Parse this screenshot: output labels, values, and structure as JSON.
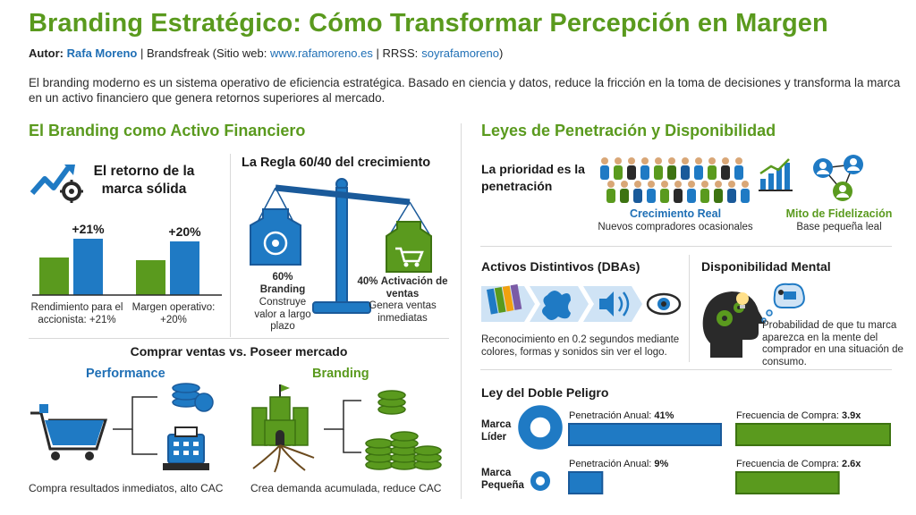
{
  "header": {
    "title": "Branding Estratégico: Cómo Transformar Percepción en Margen",
    "author_label": "Autor:",
    "author_name": "Rafa Moreno",
    "byline_rest_1": "| Brandsfreak (Sitio web:",
    "website": "www.rafamoreno.es",
    "byline_rest_2": "| RRSS:",
    "social": "soyrafamoreno",
    "byline_rest_3": ")"
  },
  "intro": "El branding moderno es un sistema operativo de eficiencia estratégica. Basado en ciencia y datos, reduce la fricción en la toma de decisiones y transforma la marca en un activo financiero que genera retornos superiores al mercado.",
  "left": {
    "heading": "El Branding como Activo Financiero",
    "retorno": {
      "title": "El retorno de la marca sólida",
      "groups": [
        {
          "value_label": "+21%",
          "caption": "Rendimiento para el accionista: +21%"
        },
        {
          "value_label": "+20%",
          "caption": "Margen operativo: +20%"
        }
      ]
    },
    "regla": {
      "title": "La Regla 60/40 del crecimiento",
      "left_pct": "60%",
      "left_name": "Branding",
      "left_desc": "Construye valor a largo plazo",
      "right_pct": "40%",
      "right_name": "Activación de ventas",
      "right_desc": "Genera ventas inmediatas"
    },
    "comprar": {
      "title": "Comprar ventas vs. Poseer mercado",
      "performance_label": "Performance",
      "performance_caption": "Compra resultados inmediatos, alto CAC",
      "branding_label": "Branding",
      "branding_caption": "Crea demanda acumulada, reduce CAC"
    }
  },
  "right": {
    "heading": "Leyes de Penetración y Disponibilidad",
    "penetracion": {
      "title": "La prioridad es la penetración",
      "growth_label": "Crecimiento Real",
      "growth_desc": "Nuevos compradores ocasionales",
      "myth_label": "Mito de Fidelización",
      "myth_desc": "Base pequeña leal"
    },
    "dbas": {
      "title": "Activos Distintivos (DBAs)",
      "desc": "Reconocimiento en 0.2 segundos mediante colores, formas y sonidos sin ver el logo."
    },
    "mental": {
      "title": "Disponibilidad Mental",
      "desc": "Probabilidad de que tu marca aparezca en la mente del comprador en una situación de consumo."
    },
    "doble": {
      "title": "Ley del Doble Peligro",
      "penetration_label": "Penetración Anual:",
      "frequency_label": "Frecuencia de Compra:",
      "rows": [
        {
          "name": "Marca Líder",
          "penetration": "41%",
          "frequency": "3.9x"
        },
        {
          "name": "Marca Pequeña",
          "penetration": "9%",
          "frequency": "2.6x"
        }
      ]
    }
  },
  "colors": {
    "green": "#5a9a1e",
    "blue": "#1f7ac4",
    "dark_blue": "#1a5a9a"
  },
  "chart_data": [
    {
      "type": "bar",
      "categories": [
        "Rendimiento para el accionista",
        "Margen operativo"
      ],
      "series": [
        {
          "values": [
            14,
            13
          ]
        },
        {
          "values": [
            21,
            20
          ]
        }
      ]
    },
    {
      "type": "bar",
      "categories": [
        "Marca Líder",
        "Marca Pequeña"
      ],
      "series": [
        {
          "name": "Penetración Anual",
          "values": [
            41,
            9
          ]
        },
        {
          "name": "Frecuencia de Compra",
          "values": [
            3.9,
            2.6
          ]
        }
      ]
    }
  ]
}
